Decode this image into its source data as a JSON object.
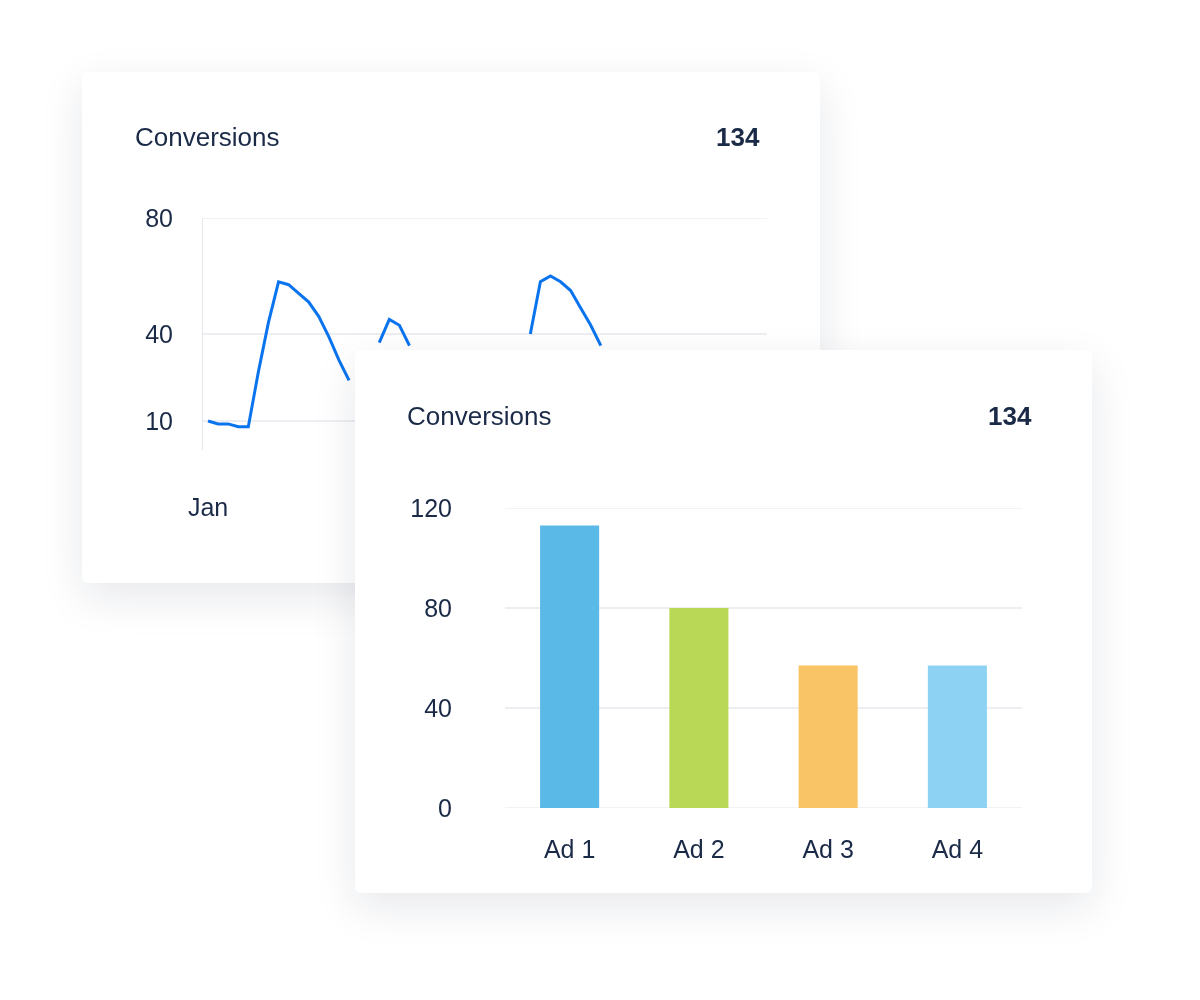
{
  "chart_data": [
    {
      "type": "line",
      "title": "Conversions",
      "annotations": [
        "134"
      ],
      "categories": [
        "Jan",
        null,
        null,
        null,
        null,
        null,
        null,
        null,
        null,
        null,
        null,
        null,
        null,
        null,
        null,
        null,
        null,
        null,
        null,
        null,
        null,
        null,
        null,
        null,
        null,
        null,
        null,
        null,
        null,
        null,
        null,
        null,
        null,
        null,
        null,
        null,
        null,
        null,
        null,
        null,
        null,
        null,
        null,
        null,
        null,
        null,
        null,
        null,
        null,
        null,
        null,
        null,
        null,
        null,
        null,
        null
      ],
      "values": [
        10,
        9,
        9,
        8,
        8,
        27,
        44,
        58,
        57,
        54,
        51,
        46,
        39,
        31,
        24,
        null,
        null,
        37,
        45,
        43,
        36,
        null,
        null,
        null,
        null,
        null,
        null,
        null,
        null,
        null,
        null,
        null,
        40,
        58,
        60,
        58,
        55,
        49,
        43,
        36,
        null,
        null,
        null,
        null,
        null,
        null,
        null,
        null,
        null,
        null,
        null,
        null,
        null,
        null,
        null,
        null
      ],
      "color": "#0a74ee",
      "ylim": [
        0,
        80
      ],
      "yticks": [
        10,
        40,
        80
      ],
      "grid": "y"
    },
    {
      "type": "bar",
      "title": "Conversions",
      "annotations": [
        "134"
      ],
      "categories": [
        "Ad 1",
        "Ad 2",
        "Ad 3",
        "Ad 4"
      ],
      "values": [
        113,
        80,
        57,
        57
      ],
      "colors": [
        "#5bb9e8",
        "#b9d956",
        "#f8c465",
        "#8dd1f3"
      ],
      "ylim": [
        0,
        120
      ],
      "yticks": [
        0,
        40,
        80,
        120
      ],
      "grid": "y"
    }
  ]
}
